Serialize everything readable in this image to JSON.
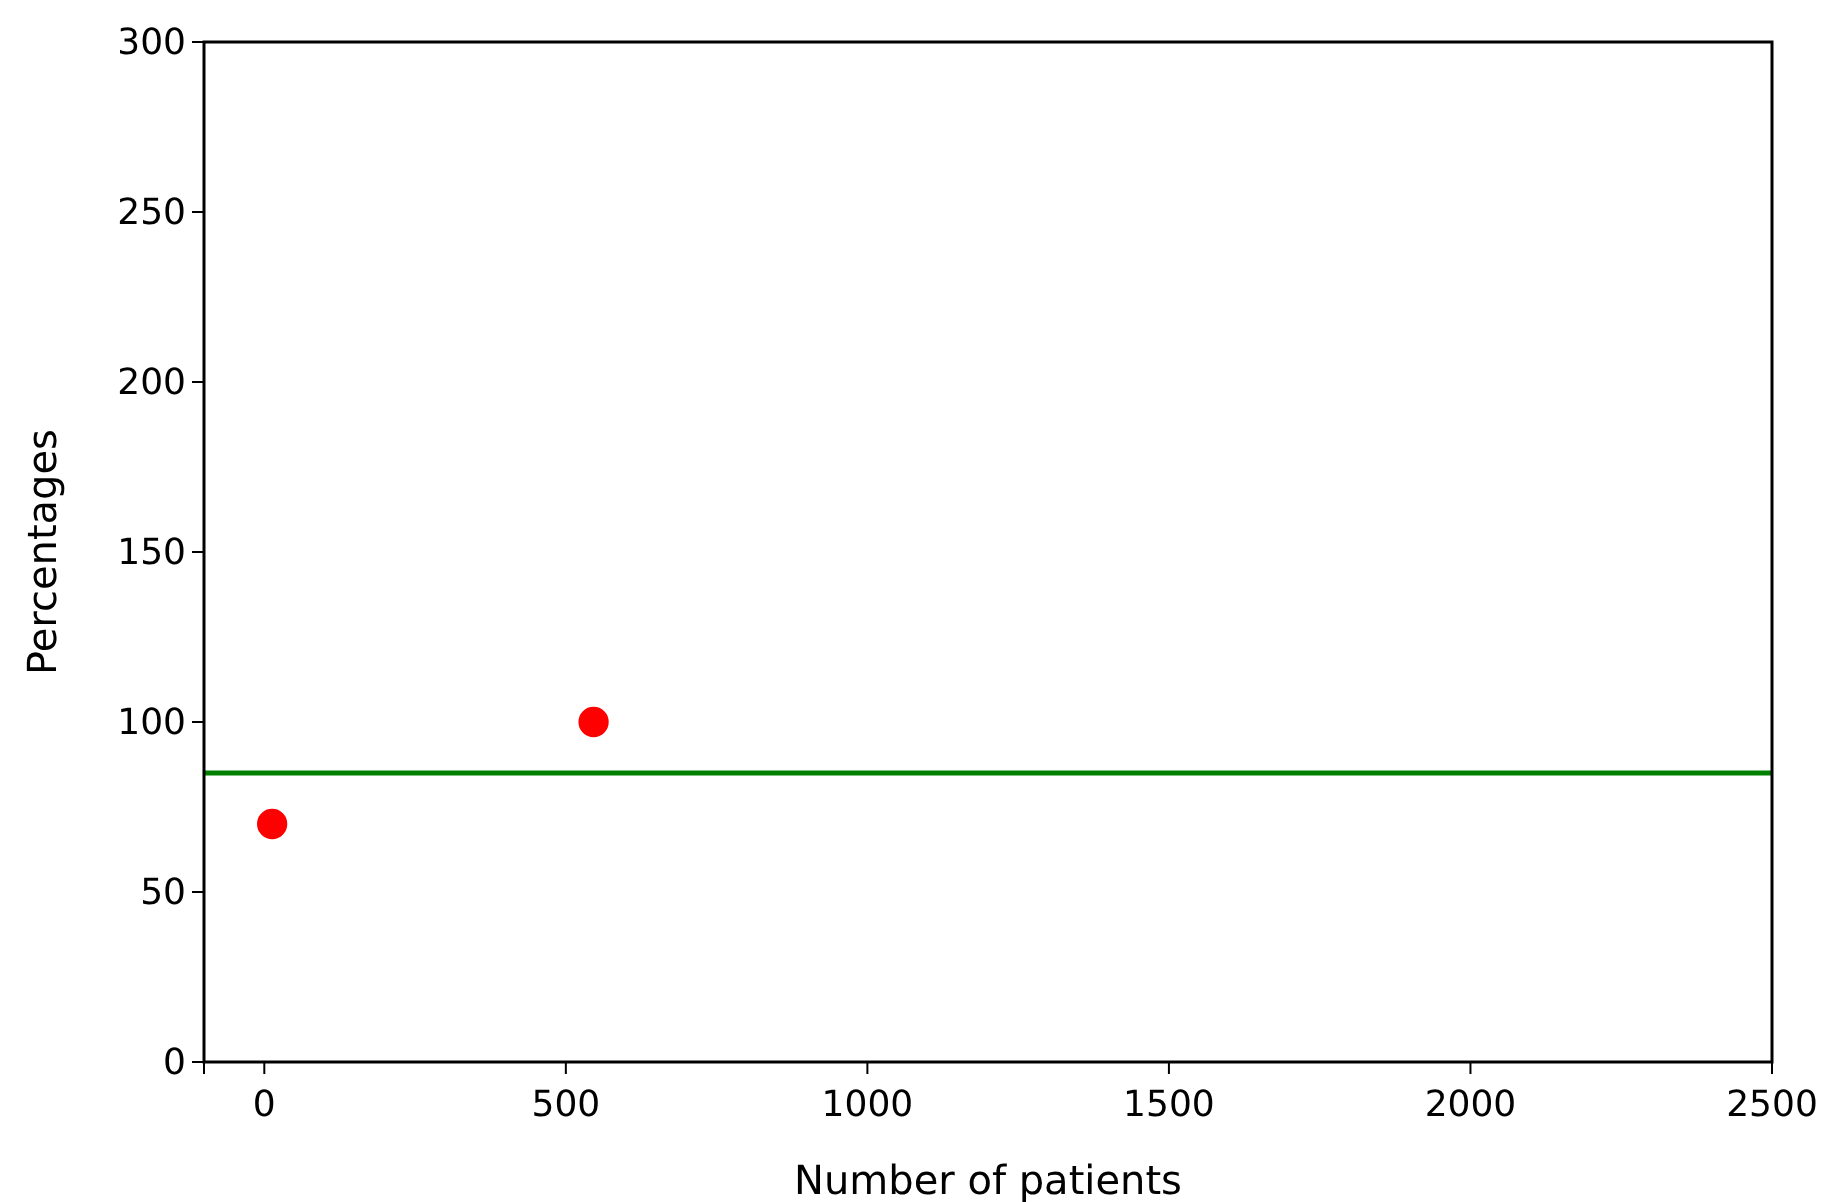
{
  "chart_data": {
    "type": "scatter",
    "xlabel": "Number of patients",
    "ylabel": "Percentages",
    "x": [
      13,
      546
    ],
    "series": [
      {
        "color": "#ff0000",
        "values": [
          70,
          100
        ]
      }
    ],
    "xlim": [
      -100,
      2500
    ],
    "xticks": [
      0,
      500,
      1000,
      1500,
      2000,
      2500
    ],
    "ylim": [
      0,
      300
    ],
    "yticks": [
      0,
      50,
      100,
      150,
      200,
      250,
      300
    ],
    "marker": "circle",
    "ref_lines": [
      {
        "axis": "y",
        "value": 85,
        "color": "#008000"
      }
    ]
  }
}
